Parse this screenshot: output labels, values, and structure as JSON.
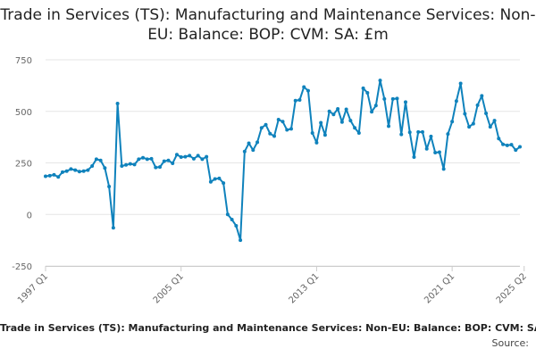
{
  "chart_data": {
    "type": "line",
    "title": "Trade in Services (TS): Manufacturing and Maintenance Services: Non-EU: Balance: BOP: CVM: SA: £m",
    "caption": "Trade in Services (TS): Manufacturing and Maintenance Services: Non-EU: Balance: BOP: CVM: SA: £m",
    "source_label": "Source:",
    "xlabel": "",
    "ylabel": "",
    "ylim": [
      -250,
      750
    ],
    "yticks": [
      -250,
      0,
      250,
      500,
      750
    ],
    "xticks": [
      {
        "label": "1997 Q1",
        "index": 0
      },
      {
        "label": "2005 Q1",
        "index": 32
      },
      {
        "label": "2013 Q1",
        "index": 64
      },
      {
        "label": "2021 Q1",
        "index": 96
      },
      {
        "label": "2025 Q2",
        "index": 113
      }
    ],
    "grid": true,
    "series": [
      {
        "name": "Balance",
        "color": "#0f82bc",
        "values": [
          185,
          188,
          192,
          182,
          205,
          210,
          220,
          215,
          208,
          210,
          215,
          235,
          268,
          262,
          225,
          135,
          -65,
          538,
          235,
          240,
          245,
          242,
          268,
          275,
          268,
          270,
          228,
          230,
          258,
          262,
          248,
          290,
          278,
          280,
          285,
          270,
          285,
          268,
          280,
          158,
          172,
          175,
          152,
          0,
          -25,
          -55,
          -125,
          305,
          345,
          312,
          350,
          420,
          435,
          392,
          380,
          460,
          450,
          410,
          415,
          552,
          555,
          618,
          600,
          395,
          348,
          445,
          385,
          500,
          485,
          512,
          448,
          510,
          455,
          420,
          395,
          612,
          590,
          498,
          528,
          650,
          560,
          428,
          560,
          562,
          388,
          545,
          398,
          278,
          400,
          400,
          318,
          378,
          300,
          302,
          220,
          390,
          450,
          550,
          635,
          488,
          425,
          440,
          530,
          575,
          490,
          425,
          455,
          368,
          340,
          335,
          338,
          312,
          328
        ]
      }
    ]
  }
}
